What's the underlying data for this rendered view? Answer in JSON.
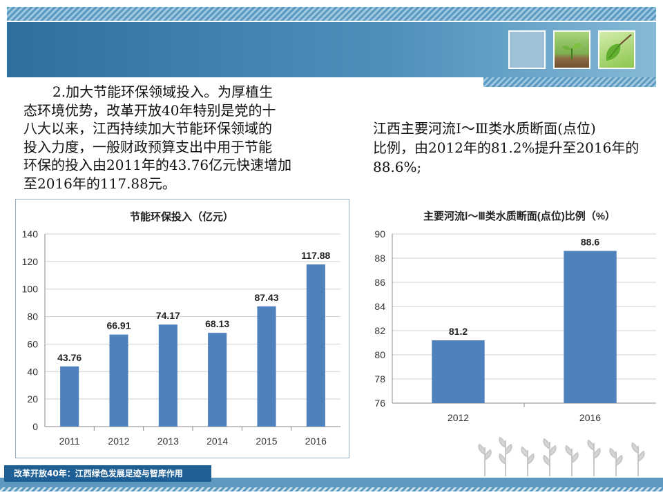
{
  "header": {
    "thumbnails": [
      "blank-tile",
      "sprout-photo",
      "leaf-photo"
    ]
  },
  "left_text": {
    "lines": [
      "2.加大节能环保领域投入。为厚植生",
      "态环境优势，改革开放40年特别是党的十",
      "八大以来，江西持续加大节能环保领域的",
      "投入力度，一般财政预算支出中用于节能",
      "环保的投入由2011年的43.76亿元快速增加",
      "至2016年的117.88元。"
    ]
  },
  "right_text": {
    "lines": [
      "江西主要河流Ⅰ～Ⅲ类水质断面(点位)",
      "比例，由2012年的81.2%提升至2016年的",
      "88.6%;"
    ]
  },
  "chart_data": [
    {
      "type": "bar",
      "title": "节能环保投入（亿元）",
      "categories": [
        "2011",
        "2012",
        "2013",
        "2014",
        "2015",
        "2016"
      ],
      "values": [
        43.76,
        66.91,
        74.17,
        68.13,
        87.43,
        117.88
      ],
      "data_labels": [
        "43.76",
        "66.91",
        "74.17",
        "68.13",
        "87.43",
        "117.88"
      ],
      "ylim": [
        0,
        140
      ],
      "yticks": [
        0,
        20,
        40,
        60,
        80,
        100,
        120,
        140
      ],
      "grid": true,
      "bar_color": "#4f81bd"
    },
    {
      "type": "bar",
      "title": "主要河流Ⅰ～Ⅲ类水质断面(点位)比例（%）",
      "categories": [
        "2012",
        "2016"
      ],
      "values": [
        81.2,
        88.6
      ],
      "data_labels": [
        "81.2",
        "88.6"
      ],
      "ylim": [
        76,
        90
      ],
      "yticks": [
        76,
        78,
        80,
        82,
        84,
        86,
        88,
        90
      ],
      "grid": true,
      "bar_color": "#4f81bd"
    }
  ],
  "footer": {
    "label": "改革开放40年：江西绿色发展足迹与智库作用"
  }
}
